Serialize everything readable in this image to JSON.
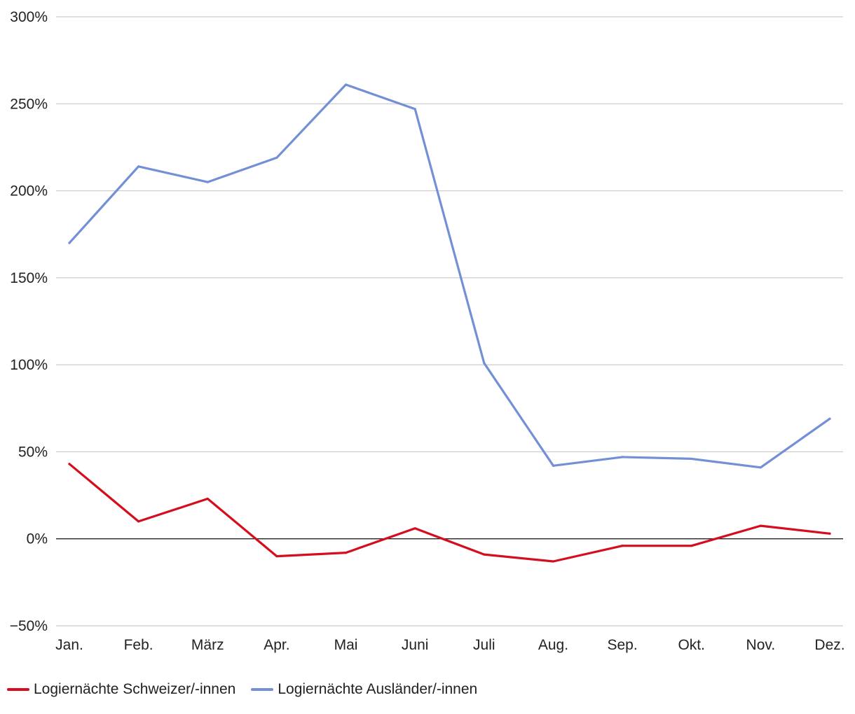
{
  "chart_data": {
    "type": "line",
    "categories": [
      "Jan.",
      "Feb.",
      "März",
      "Apr.",
      "Mai",
      "Juni",
      "Juli",
      "Aug.",
      "Sep.",
      "Okt.",
      "Nov.",
      "Dez."
    ],
    "y_ticks": [
      "300%",
      "250%",
      "200%",
      "150%",
      "100%",
      "50%",
      "0%",
      "−50%"
    ],
    "y_tick_values": [
      300,
      250,
      200,
      150,
      100,
      50,
      0,
      -50
    ],
    "ylim": [
      -50,
      300
    ],
    "grid": true,
    "legend_position": "bottom-left",
    "series": [
      {
        "name": "Logiernächte Schweizer/-innen",
        "color": "#d50e1f",
        "values": [
          43,
          10,
          23,
          -10,
          -8,
          6,
          -9,
          -13,
          -4,
          -4,
          7.5,
          3
        ]
      },
      {
        "name": "Logiernächte Ausländer/-innen",
        "color": "#7390d6",
        "values": [
          170,
          214,
          205,
          219,
          261,
          247,
          101,
          42,
          47,
          46,
          41,
          69
        ]
      }
    ]
  }
}
